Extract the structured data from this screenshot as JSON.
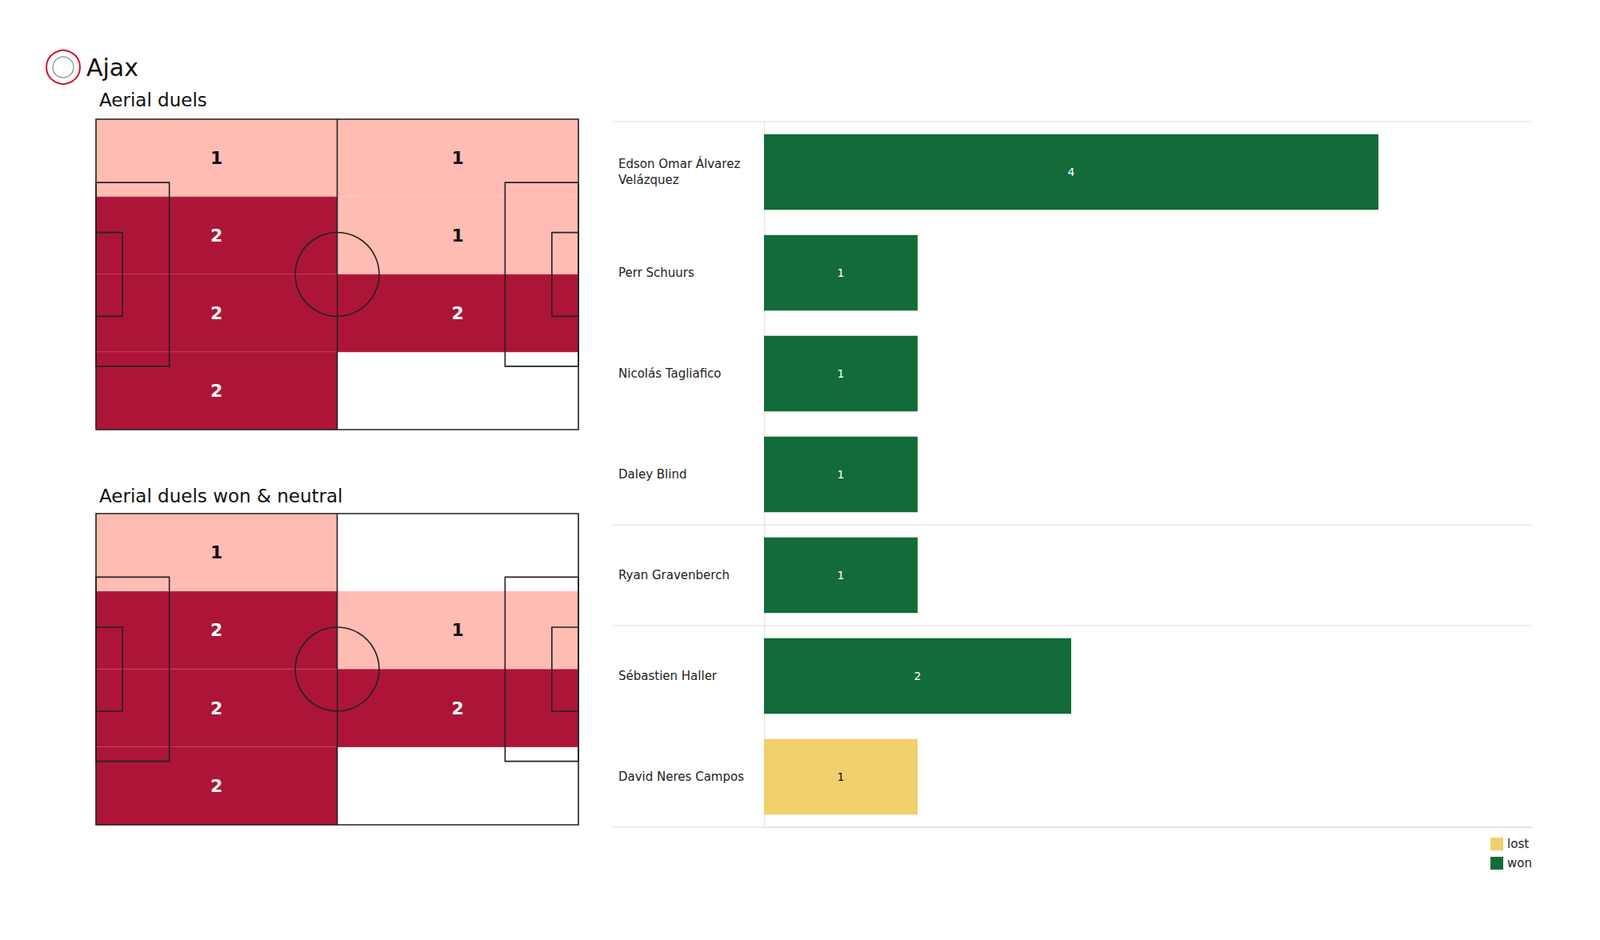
{
  "title": "Ajax",
  "chart_data": [
    {
      "type": "heatmap",
      "title": "Aerial duels",
      "cells": [
        [
          1,
          1
        ],
        [
          2,
          1
        ],
        [
          2,
          2
        ],
        [
          2,
          null
        ]
      ],
      "color_range": [
        1,
        2
      ],
      "colors": [
        "#ffbcb3",
        "#ad1538"
      ],
      "data_labels": true,
      "tick_labels": false
    },
    {
      "type": "heatmap",
      "title": "Aerial duels won & neutral",
      "cells": [
        [
          1,
          null
        ],
        [
          2,
          1
        ],
        [
          2,
          2
        ],
        [
          2,
          null
        ]
      ],
      "color_range": [
        1,
        2
      ],
      "colors": [
        "#ffbcb3",
        "#ad1538"
      ],
      "data_labels": true,
      "tick_labels": false
    },
    {
      "type": "bar",
      "orientation": "horizontal",
      "stacked": true,
      "categories": [
        "Edson Omar Álvarez Velázquez",
        "Perr Schuurs",
        "Nicolás Tagliafico",
        "Daley Blind",
        "Ryan Gravenberch",
        "Sébastien Haller",
        "David Neres Campos"
      ],
      "series": [
        {
          "name": "lost",
          "color": "#f0d06b",
          "values": [
            null,
            null,
            null,
            null,
            null,
            null,
            1
          ]
        },
        {
          "name": "won",
          "color": "#136b39",
          "values": [
            4,
            1,
            1,
            1,
            1,
            2,
            null
          ]
        }
      ],
      "xlim": [
        0,
        5
      ],
      "tick_labels": false,
      "grid": false,
      "data_labels": true,
      "legend": "lower right"
    }
  ]
}
